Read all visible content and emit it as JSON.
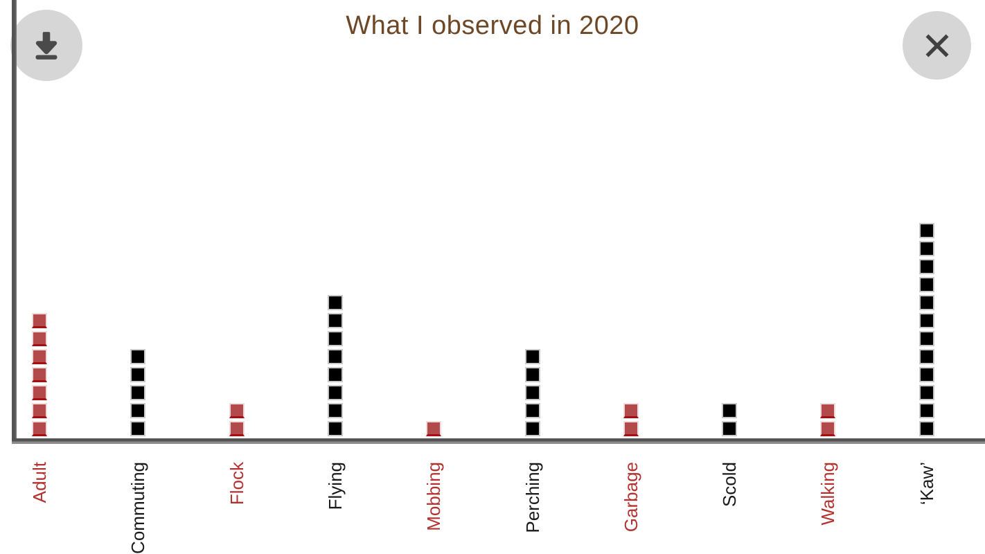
{
  "header": {
    "title": "What I observed in 2020",
    "title_color": "#6d4826",
    "download_button": {
      "icon": "download-icon"
    },
    "close_button": {
      "icon": "close-icon"
    }
  },
  "chart_data": {
    "type": "bar",
    "style": "unit-square-pictogram",
    "title": "What I observed in 2020",
    "categories": [
      "Adult",
      "Commuting",
      "Flock",
      "Flying",
      "Mobbing",
      "Perching",
      "Garbage",
      "Scold",
      "Walking",
      "‘Kaw’"
    ],
    "values": [
      7,
      5,
      2,
      8,
      1,
      5,
      2,
      2,
      2,
      12
    ],
    "colors": [
      "#b2494a",
      "#000000",
      "#b2494a",
      "#000000",
      "#b2494a",
      "#000000",
      "#b2494a",
      "#000000",
      "#b2494a",
      "#000000"
    ],
    "label_colors": [
      "#b23230",
      "#1a1a1a",
      "#b23230",
      "#1a1a1a",
      "#b23230",
      "#1a1a1a",
      "#b23230",
      "#1a1a1a",
      "#b23230",
      "#1a1a1a"
    ],
    "xlabel": "",
    "ylabel": "",
    "ylim": [
      0,
      12
    ],
    "grid": false,
    "legend": null
  },
  "colors": {
    "red_series_fill": "#b2494a",
    "red_series_edge": "#a21014",
    "black_series_fill": "#000000",
    "axis_gray": "#545454",
    "button_bg": "#d6d6d6",
    "icon_gray": "#474747"
  }
}
